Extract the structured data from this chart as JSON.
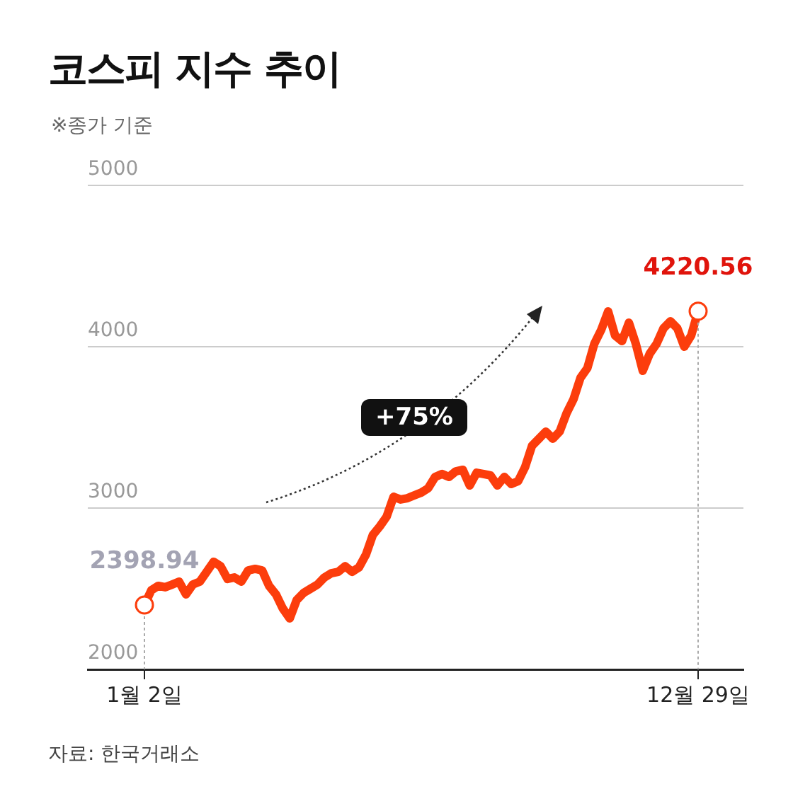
{
  "chart_data": {
    "type": "line",
    "title": "코스피 지수 추이",
    "subtitle": "※종가 기준",
    "categories": [
      "1월 2일",
      null,
      null,
      null,
      null,
      null,
      null,
      null,
      null,
      null,
      null,
      null,
      null,
      null,
      null,
      null,
      null,
      null,
      null,
      null,
      null,
      null,
      null,
      null,
      null,
      null,
      null,
      null,
      null,
      null,
      null,
      null,
      null,
      null,
      null,
      null,
      null,
      null,
      null,
      null,
      null,
      null,
      null,
      null,
      null,
      null,
      null,
      null,
      null,
      null,
      null,
      null,
      null,
      null,
      null,
      null,
      null,
      null,
      null,
      null,
      null,
      null,
      null,
      null,
      null,
      null,
      null,
      null,
      null,
      null,
      null,
      null,
      null,
      null,
      null,
      null,
      null,
      null,
      null,
      null,
      "12월 29일"
    ],
    "series": [
      {
        "color": "#fc3d0c",
        "values": [
          2398.94,
          2491,
          2518,
          2509,
          2526,
          2544,
          2465,
          2526,
          2544,
          2605,
          2667,
          2640,
          2561,
          2570,
          2544,
          2614,
          2623,
          2614,
          2518,
          2465,
          2377,
          2316,
          2430,
          2474,
          2500,
          2526,
          2570,
          2596,
          2605,
          2640,
          2605,
          2632,
          2711,
          2833,
          2886,
          2947,
          3070,
          3053,
          3061,
          3079,
          3096,
          3123,
          3193,
          3211,
          3193,
          3228,
          3237,
          3140,
          3219,
          3211,
          3202,
          3140,
          3193,
          3149,
          3167,
          3254,
          3386,
          3430,
          3474,
          3430,
          3474,
          3588,
          3675,
          3807,
          3868,
          4018,
          4105,
          4219,
          4070,
          4035,
          4149,
          4018,
          3851,
          3956,
          4018,
          4114,
          4158,
          4114,
          4000,
          4070,
          4220.56
        ]
      }
    ],
    "ylim": [
      2000,
      5000
    ],
    "yticks": [
      2000,
      3000,
      4000,
      5000
    ],
    "grid": "y",
    "legend": false,
    "marker": "none",
    "annotations": [
      {
        "text": "2398.94",
        "x": "1월 2일",
        "y": 2398.94
      },
      {
        "text": "4220.56",
        "x": "12월 29일",
        "y": 4220.56
      },
      "+75%",
      "자료: 한국거래소"
    ]
  }
}
